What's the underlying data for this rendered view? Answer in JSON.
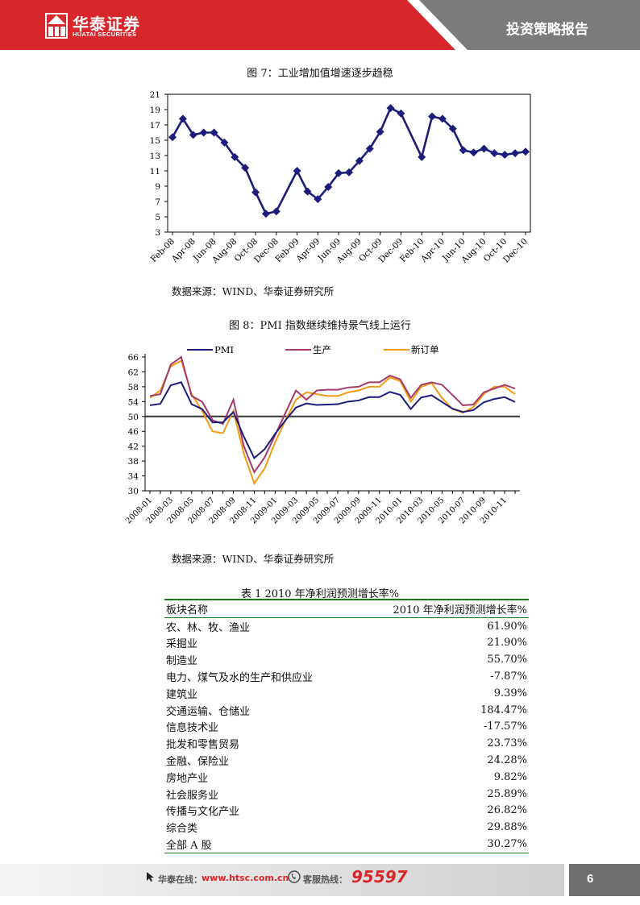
{
  "header": {
    "brand_cn": "华泰证券",
    "brand_en": "HUATAI SECURITIES",
    "report_type": "投资策略报告"
  },
  "figure7": {
    "caption": "图 7：工业增加值增速逐步趋稳",
    "source": "数据来源：WIND、华泰证券研究所"
  },
  "figure8": {
    "caption": "图 8：PMI 指数继续维持景气线上运行",
    "source": "数据来源：WIND、华泰证券研究所"
  },
  "chart_data": [
    {
      "type": "line",
      "title": "图 7：工业增加值增速逐步趋稳",
      "x": [
        "2008-02",
        "2008-03",
        "2008-04",
        "2008-05",
        "2008-06",
        "2008-07",
        "2008-08",
        "2008-09",
        "2008-10",
        "2008-11",
        "2008-12",
        "2009-02",
        "2009-03",
        "2009-04",
        "2009-05",
        "2009-06",
        "2009-07",
        "2009-08",
        "2009-09",
        "2009-10",
        "2009-11",
        "2009-12",
        "2010-02",
        "2010-03",
        "2010-04",
        "2010-05",
        "2010-06",
        "2010-07",
        "2010-08",
        "2010-09",
        "2010-10",
        "2010-11",
        "2010-12"
      ],
      "tick_labels": [
        "Feb-08",
        "Apr-08",
        "Jun-08",
        "Aug-08",
        "Oct-08",
        "Dec-08",
        "Feb-09",
        "Apr-09",
        "Jun-09",
        "Aug-09",
        "Oct-09",
        "Dec-09",
        "Feb-10",
        "Apr-10",
        "Jun-10",
        "Aug-10",
        "Oct-10",
        "Dec-10"
      ],
      "series": [
        {
          "values": [
            15.4,
            17.8,
            15.7,
            16.0,
            16.0,
            14.7,
            12.8,
            11.4,
            8.2,
            5.4,
            5.7,
            11.0,
            8.3,
            7.3,
            8.9,
            10.7,
            10.8,
            12.3,
            13.9,
            16.1,
            19.2,
            18.5,
            12.8,
            18.1,
            17.8,
            16.5,
            13.7,
            13.4,
            13.9,
            13.3,
            13.1,
            13.3,
            13.5
          ]
        }
      ],
      "ylim": [
        3,
        21
      ],
      "yticks": [
        3,
        5,
        7,
        9,
        11,
        13,
        15,
        17,
        19,
        21
      ],
      "color": "#1c1c7a",
      "grid": false
    },
    {
      "type": "line",
      "title": "图 8：PMI 指数继续维持景气线上运行",
      "x": [
        "2008-01",
        "2008-02",
        "2008-03",
        "2008-04",
        "2008-05",
        "2008-06",
        "2008-07",
        "2008-08",
        "2008-09",
        "2008-10",
        "2008-11",
        "2008-12",
        "2009-01",
        "2009-02",
        "2009-03",
        "2009-04",
        "2009-05",
        "2009-06",
        "2009-07",
        "2009-08",
        "2009-09",
        "2009-10",
        "2009-11",
        "2009-12",
        "2010-01",
        "2010-02",
        "2010-03",
        "2010-04",
        "2010-05",
        "2010-06",
        "2010-07",
        "2010-08",
        "2010-09",
        "2010-10",
        "2010-11",
        "2010-12"
      ],
      "tick_labels": [
        "2008-01",
        "2008-03",
        "2008-05",
        "2008-07",
        "2008-09",
        "2008-11",
        "2009-01",
        "2009-03",
        "2009-05",
        "2009-07",
        "2009-09",
        "2009-11",
        "2010-01",
        "2010-03",
        "2010-05",
        "2010-07",
        "2010-09",
        "2010-11"
      ],
      "series": [
        {
          "name": "PMI",
          "color": "#1c1c7a",
          "values": [
            53.0,
            53.4,
            58.4,
            59.2,
            53.3,
            52.0,
            48.4,
            48.4,
            51.2,
            44.6,
            38.8,
            41.2,
            45.3,
            49.0,
            52.4,
            53.5,
            53.1,
            53.2,
            53.3,
            54.0,
            54.3,
            55.2,
            55.2,
            56.6,
            55.8,
            52.0,
            55.1,
            55.7,
            53.9,
            52.1,
            51.2,
            51.7,
            53.8,
            54.7,
            55.2,
            53.9
          ]
        },
        {
          "name": "生产",
          "color": "#a33a6e",
          "values": [
            55.5,
            56.0,
            64.0,
            66.0,
            55.5,
            54.0,
            49.0,
            48.0,
            54.5,
            42.0,
            35.0,
            39.0,
            45.0,
            51.0,
            57.0,
            54.5,
            57.0,
            57.2,
            57.2,
            57.8,
            58.0,
            59.2,
            59.2,
            61.0,
            60.0,
            55.0,
            58.5,
            59.2,
            58.5,
            55.8,
            53.0,
            53.2,
            56.5,
            57.5,
            58.5,
            57.5
          ]
        },
        {
          "name": "新订单",
          "color": "#f29b14",
          "values": [
            55.0,
            57.0,
            63.5,
            65.0,
            56.0,
            51.5,
            46.0,
            45.5,
            51.5,
            40.0,
            32.0,
            36.0,
            43.0,
            49.0,
            54.5,
            56.5,
            56.0,
            55.5,
            55.5,
            56.5,
            57.0,
            58.0,
            58.0,
            60.5,
            59.5,
            54.0,
            58.0,
            59.0,
            55.0,
            52.0,
            51.0,
            52.5,
            56.0,
            58.0,
            58.0,
            56.0
          ]
        }
      ],
      "reference_line": 50,
      "ylim": [
        30,
        66
      ],
      "yticks": [
        30,
        34,
        38,
        42,
        46,
        50,
        54,
        58,
        62,
        66
      ],
      "legend": "top",
      "grid": false
    }
  ],
  "table1": {
    "caption": "表 1 2010 年净利润预测增长率%",
    "headers": [
      "板块名称",
      "2010 年净利润预测增长率%"
    ],
    "rows": [
      [
        "农、林、牧、渔业",
        "61.90%"
      ],
      [
        "采掘业",
        "21.90%"
      ],
      [
        "制造业",
        "55.70%"
      ],
      [
        "电力、煤气及水的生产和供应业",
        "-7.87%"
      ],
      [
        "建筑业",
        "9.39%"
      ],
      [
        "交通运输、仓储业",
        "184.47%"
      ],
      [
        "信息技术业",
        "-17.57%"
      ],
      [
        "批发和零售贸易",
        "23.73%"
      ],
      [
        "金融、保险业",
        "24.28%"
      ],
      [
        "房地产业",
        "9.82%"
      ],
      [
        "社会服务业",
        "25.89%"
      ],
      [
        "传播与文化产业",
        "26.82%"
      ],
      [
        "综合类",
        "29.88%"
      ],
      [
        "全部 A 股",
        "30.27%"
      ]
    ]
  },
  "footer": {
    "website_label": "华泰在线：",
    "website": "www.htsc.com.cn",
    "hotline_label": "客服热线：",
    "hotline": "95597",
    "page": "6"
  },
  "colors": {
    "brand_red": "#d7262c",
    "header_gray": "#7b7b7b",
    "table_rule": "#1a7a1a"
  }
}
